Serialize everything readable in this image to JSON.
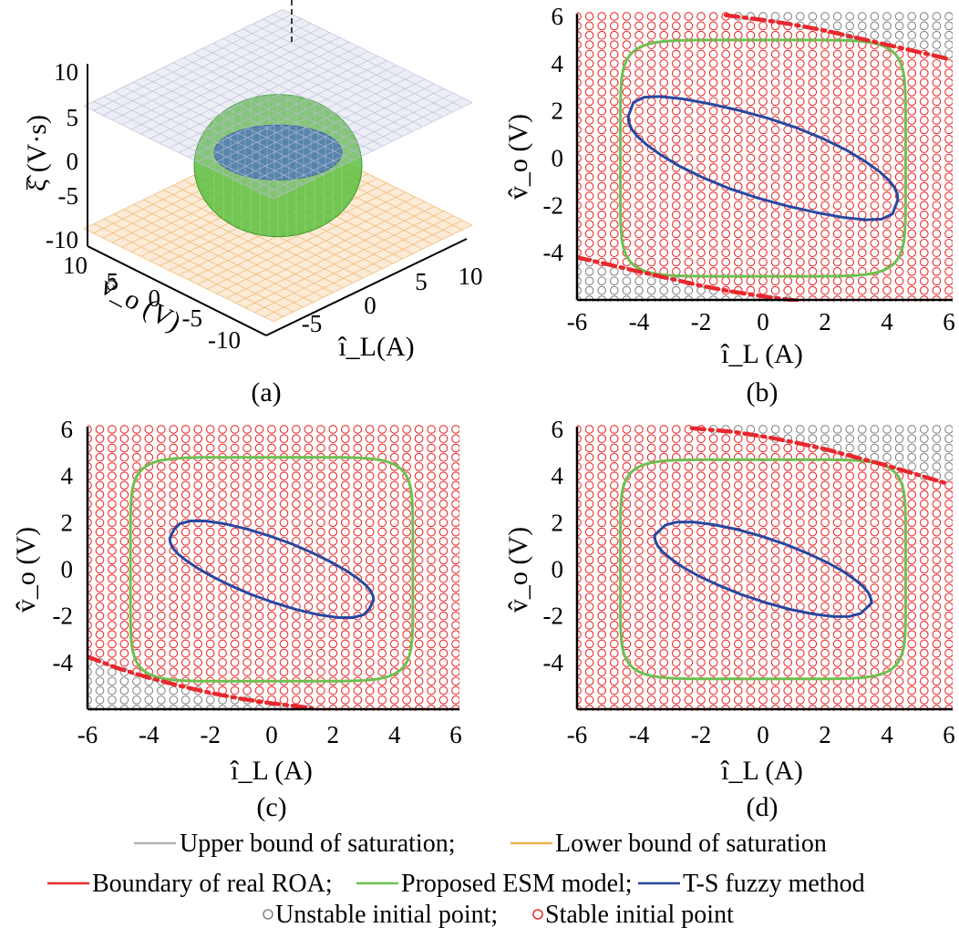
{
  "chart_data": [
    {
      "id": "a",
      "type": "surface3d",
      "caption": "(a)",
      "xlabel": "î_L(A)",
      "ylabel": "v̂_o (V)",
      "zlabel": "ξ̂ (V·s)",
      "x_ticks": [
        "-5",
        "0",
        "5",
        "10"
      ],
      "y_ticks": [
        "10",
        "5",
        "0",
        "-5",
        "-10"
      ],
      "z_ticks": [
        "10",
        "5",
        "0",
        "-5",
        "-10"
      ],
      "xlim": [
        -10,
        10
      ],
      "ylim": [
        -10,
        10
      ],
      "zlim": [
        -10,
        10
      ],
      "surfaces": [
        {
          "kind": "upper_saturation_plane",
          "z": 6,
          "color": "#b8bdd8"
        },
        {
          "kind": "lower_saturation_plane",
          "z": -8,
          "color": "#f0b060"
        },
        {
          "kind": "esm_region_3d",
          "color": "#5cc040"
        },
        {
          "kind": "ts_fuzzy_region_3d",
          "color": "#3060a8"
        }
      ]
    },
    {
      "id": "b",
      "type": "scatter+line",
      "caption": "(b)",
      "xlabel": "î_L (A)",
      "ylabel": "v̂_o (V)",
      "xlim": [
        -6,
        6
      ],
      "ylim": [
        -6,
        6
      ],
      "x_ticks": [
        "-6",
        "-4",
        "-2",
        "0",
        "2",
        "4",
        "6"
      ],
      "y_ticks": [
        "6",
        "4",
        "2",
        "0",
        "-2",
        "-4"
      ],
      "esm": {
        "halfwidth": 4.6,
        "halfheight": 5.0,
        "exponent": 7
      },
      "ts": {
        "x": [
          4.35,
          4.33,
          4.24,
          4.06,
          3.76,
          3.31,
          2.72,
          1.98,
          1.12,
          0.16,
          -0.83,
          -1.79,
          -2.64,
          -3.32,
          -3.83,
          -4.18,
          -4.35,
          -4.33,
          -4.24,
          -4.06,
          -3.76,
          -3.31,
          -2.72,
          -1.98,
          -1.12,
          -0.16,
          0.83,
          1.79,
          2.64,
          3.32,
          3.83,
          4.18
        ],
        "y": [
          -1.76,
          -1.52,
          -1.24,
          -0.93,
          -0.57,
          -0.15,
          0.32,
          0.8,
          1.27,
          1.69,
          2.04,
          2.32,
          2.52,
          2.61,
          2.58,
          2.36,
          1.76,
          1.52,
          1.24,
          0.93,
          0.57,
          0.15,
          -0.32,
          -0.8,
          -1.27,
          -1.69,
          -2.04,
          -2.32,
          -2.52,
          -2.61,
          -2.58,
          -2.36
        ]
      },
      "roa_upper": {
        "x": [
          -1.2,
          0,
          1,
          2,
          3,
          4,
          5,
          6
        ],
        "y": [
          6.05,
          5.85,
          5.65,
          5.4,
          5.1,
          4.8,
          4.5,
          4.2
        ]
      },
      "roa_lower": {
        "x": [
          -6,
          -5,
          -4,
          -3,
          -2,
          -1,
          0,
          1.2
        ],
        "y": [
          -4.2,
          -4.5,
          -4.8,
          -5.1,
          -5.4,
          -5.65,
          -5.85,
          -6.05
        ]
      }
    },
    {
      "id": "c",
      "type": "scatter+line",
      "caption": "(c)",
      "xlabel": "î_L (A)",
      "ylabel": "v̂_o (V)",
      "xlim": [
        -6,
        6
      ],
      "ylim": [
        -6,
        6
      ],
      "x_ticks": [
        "-6",
        "-4",
        "-2",
        "0",
        "2",
        "4",
        "6"
      ],
      "y_ticks": [
        "6",
        "4",
        "2",
        "0",
        "-2",
        "-4"
      ],
      "esm": {
        "halfwidth": 4.6,
        "halfheight": 4.8,
        "exponent": 7
      },
      "ts": {
        "x": [
          3.32,
          3.3,
          3.22,
          3.06,
          2.8,
          2.43,
          1.95,
          1.35,
          0.67,
          -0.07,
          -0.82,
          -1.53,
          -2.16,
          -2.65,
          -2.99,
          -3.18,
          -3.32,
          -3.3,
          -3.22,
          -3.06,
          -2.8,
          -2.43,
          -1.95,
          -1.35,
          -0.67,
          0.07,
          0.82,
          1.53,
          2.16,
          2.65,
          2.99,
          3.18
        ],
        "y": [
          -1.32,
          -1.13,
          -0.91,
          -0.67,
          -0.39,
          -0.06,
          0.3,
          0.69,
          1.08,
          1.43,
          1.73,
          1.95,
          2.07,
          2.07,
          1.95,
          1.71,
          1.32,
          1.13,
          0.91,
          0.67,
          0.39,
          0.06,
          -0.3,
          -0.69,
          -1.08,
          -1.43,
          -1.73,
          -1.95,
          -2.07,
          -2.07,
          -1.95,
          -1.71
        ]
      },
      "roa_lower": {
        "x": [
          -6,
          -5,
          -4,
          -3,
          -2,
          -1,
          0,
          1.3
        ],
        "y": [
          -3.75,
          -4.25,
          -4.65,
          -5.0,
          -5.3,
          -5.55,
          -5.75,
          -5.95
        ]
      }
    },
    {
      "id": "d",
      "type": "scatter+line",
      "caption": "(d)",
      "xlabel": "î_L (A)",
      "ylabel": "v̂_o (V)",
      "xlim": [
        -6,
        6
      ],
      "ylim": [
        -6,
        6
      ],
      "x_ticks": [
        "-6",
        "-4",
        "-2",
        "0",
        "2",
        "4",
        "6"
      ],
      "y_ticks": [
        "6",
        "4",
        "2",
        "0",
        "-2",
        "-4"
      ],
      "esm": {
        "halfwidth": 4.6,
        "halfheight": 4.7,
        "exponent": 7
      },
      "ts": {
        "x": [
          3.5,
          3.48,
          3.4,
          3.23,
          2.95,
          2.57,
          2.06,
          1.42,
          0.71,
          -0.08,
          -0.87,
          -1.62,
          -2.28,
          -2.79,
          -3.15,
          -3.35,
          -3.5,
          -3.48,
          -3.4,
          -3.23,
          -2.95,
          -2.57,
          -2.06,
          -1.42,
          -0.71,
          0.08,
          0.87,
          1.62,
          2.28,
          2.79,
          3.15,
          3.35
        ],
        "y": [
          -1.45,
          -1.25,
          -1.01,
          -0.74,
          -0.43,
          -0.08,
          0.3,
          0.69,
          1.08,
          1.43,
          1.72,
          1.92,
          2.03,
          2.02,
          1.89,
          1.65,
          1.45,
          1.25,
          1.01,
          0.74,
          0.43,
          0.08,
          -0.3,
          -0.69,
          -1.08,
          -1.43,
          -1.72,
          -1.92,
          -2.03,
          -2.02,
          -1.89,
          -1.65
        ]
      },
      "roa_upper": {
        "x": [
          -2.3,
          -1,
          0,
          1,
          2,
          3,
          4,
          5,
          6
        ],
        "y": [
          6.05,
          5.9,
          5.7,
          5.45,
          5.15,
          4.8,
          4.45,
          4.05,
          3.65
        ]
      }
    }
  ],
  "colors": {
    "upper_bound": "#b4b4b4",
    "lower_bound": "#f0b050",
    "real_roa": "#e8282e",
    "esm": "#6cc050",
    "ts": "#2848a0",
    "unstable": "#888888",
    "stable": "#e83030"
  },
  "legend": {
    "upper": "Upper bound of saturation;",
    "lower": "Lower bound of saturation",
    "roa": "Boundary of real ROA;",
    "esm": "Proposed ESM model;",
    "ts": "T-S fuzzy method",
    "unstable": "Unstable initial point;",
    "stable": "Stable initial point"
  }
}
